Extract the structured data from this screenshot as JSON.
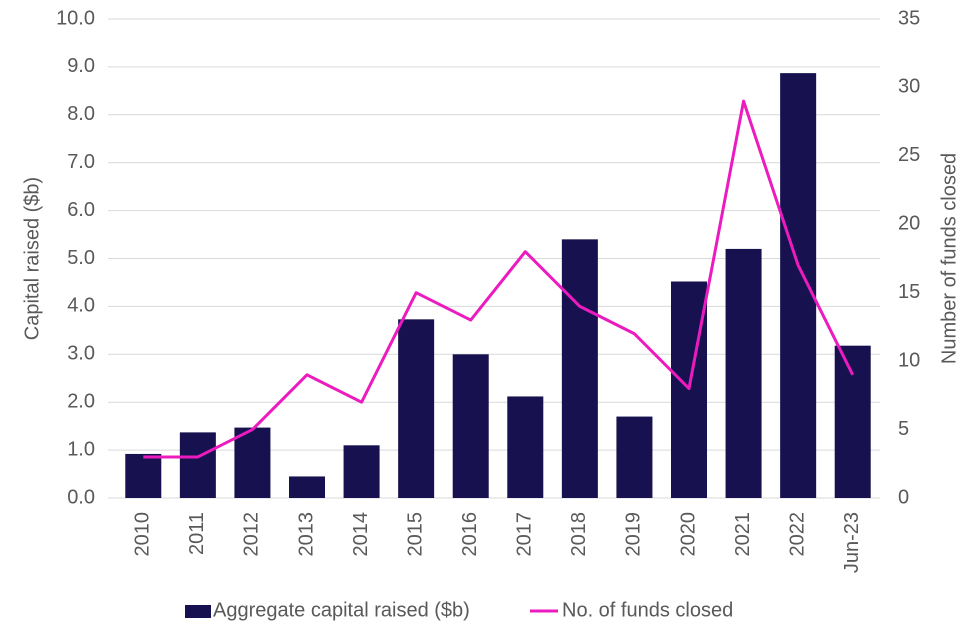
{
  "chart_data": {
    "type": "bar",
    "categories": [
      "2010",
      "2011",
      "2012",
      "2013",
      "2014",
      "2015",
      "2016",
      "2017",
      "2018",
      "2019",
      "2020",
      "2021",
      "2022",
      "Jun-23"
    ],
    "series": [
      {
        "name": "Aggregate capital raised ($b)",
        "type": "bar",
        "color": "#17124f",
        "values": [
          0.92,
          1.37,
          1.47,
          0.45,
          1.1,
          3.73,
          3.0,
          2.12,
          5.4,
          1.7,
          4.52,
          5.2,
          8.87,
          3.18
        ]
      },
      {
        "name": "No. of funds closed",
        "type": "line",
        "axis": "y2",
        "color": "#ec1bbf",
        "values": [
          3,
          3,
          5,
          9,
          7,
          15,
          13,
          18,
          14,
          12,
          8,
          29,
          17,
          9
        ]
      }
    ],
    "ylabel": "Capital raised ($b)",
    "y2label": "Number of funds closed",
    "ylim": [
      0,
      10
    ],
    "y2lim": [
      0,
      35
    ],
    "yticks": [
      {
        "value": 0,
        "label": "0.0"
      },
      {
        "value": 1,
        "label": "1.0"
      },
      {
        "value": 2,
        "label": "2.0"
      },
      {
        "value": 3,
        "label": "3.0"
      },
      {
        "value": 4,
        "label": "4.0"
      },
      {
        "value": 5,
        "label": "5.0"
      },
      {
        "value": 6,
        "label": "6.0"
      },
      {
        "value": 7,
        "label": "7.0"
      },
      {
        "value": 8,
        "label": "8.0"
      },
      {
        "value": 9,
        "label": "9.0"
      },
      {
        "value": 10,
        "label": "10.0"
      }
    ],
    "y2ticks": [
      0,
      5,
      10,
      15,
      20,
      25,
      30,
      35
    ],
    "grid": true,
    "legend": "bottom"
  }
}
